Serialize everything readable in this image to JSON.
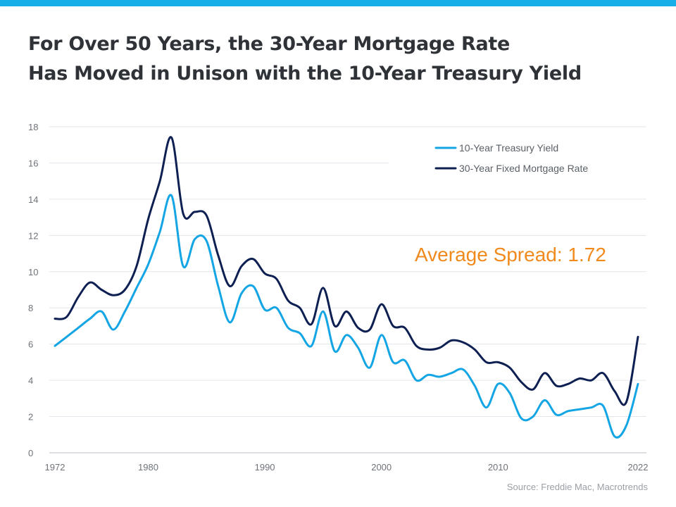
{
  "title_lines": [
    "For Over 50 Years, the 30-Year Mortgage Rate",
    "Has Moved in Unison with the 10-Year Treasury Yield"
  ],
  "source": "Source: Freddie Mac, Macrotrends",
  "colors": {
    "accent_bar": "#18aee8",
    "treasury": "#14a5e4",
    "mortgage": "#0e1f52",
    "annotation": "#f08a1c",
    "grid": "#e3e6ea"
  },
  "chart_data": {
    "type": "line",
    "title": "For Over 50 Years, the 30-Year Mortgage Rate Has Moved in Unison with the 10-Year Treasury Yield",
    "xlabel": "",
    "ylabel": "",
    "xlim": [
      1972,
      2022
    ],
    "ylim": [
      0,
      18
    ],
    "grid": true,
    "legend_position": "top-right",
    "x_ticks": [
      "1972",
      "1980",
      "1990",
      "2000",
      "2010",
      "2022"
    ],
    "x_tick_values": [
      1972,
      1980,
      1990,
      2000,
      2010,
      2022
    ],
    "y_ticks": [
      0,
      2,
      4,
      6,
      8,
      10,
      12,
      14,
      16,
      18
    ],
    "x": [
      1972,
      1973,
      1974,
      1975,
      1976,
      1977,
      1978,
      1979,
      1980,
      1981,
      1982,
      1983,
      1984,
      1985,
      1986,
      1987,
      1988,
      1989,
      1990,
      1991,
      1992,
      1993,
      1994,
      1995,
      1996,
      1997,
      1998,
      1999,
      2000,
      2001,
      2002,
      2003,
      2004,
      2005,
      2006,
      2007,
      2008,
      2009,
      2010,
      2011,
      2012,
      2013,
      2014,
      2015,
      2016,
      2017,
      2018,
      2019,
      2020,
      2021,
      2022
    ],
    "series": [
      {
        "name": "10-Year Treasury Yield",
        "values": [
          5.9,
          6.4,
          6.9,
          7.4,
          7.8,
          6.8,
          7.8,
          9.1,
          10.4,
          12.2,
          14.2,
          10.3,
          11.8,
          11.7,
          9.2,
          7.2,
          8.8,
          9.2,
          7.9,
          8.0,
          6.9,
          6.6,
          5.9,
          7.8,
          5.6,
          6.5,
          5.8,
          4.7,
          6.5,
          5.0,
          5.1,
          4.0,
          4.3,
          4.2,
          4.4,
          4.6,
          3.7,
          2.5,
          3.8,
          3.3,
          1.9,
          2.0,
          2.9,
          2.1,
          2.3,
          2.4,
          2.5,
          2.6,
          0.9,
          1.5,
          3.8
        ]
      },
      {
        "name": "30-Year Fixed Mortgage Rate",
        "values": [
          7.4,
          7.5,
          8.6,
          9.4,
          9.0,
          8.7,
          9.0,
          10.3,
          12.9,
          15.0,
          17.4,
          13.2,
          13.3,
          13.1,
          10.9,
          9.2,
          10.3,
          10.7,
          9.9,
          9.6,
          8.4,
          8.0,
          7.1,
          9.1,
          7.0,
          7.8,
          6.9,
          6.8,
          8.2,
          7.0,
          6.9,
          5.9,
          5.7,
          5.8,
          6.2,
          6.1,
          5.7,
          5.0,
          5.0,
          4.7,
          3.9,
          3.5,
          4.4,
          3.7,
          3.8,
          4.1,
          4.0,
          4.4,
          3.4,
          2.8,
          6.4
        ]
      }
    ],
    "annotations": [
      {
        "text": "Average Spread: 1.72",
        "position": "right-middle"
      }
    ]
  }
}
